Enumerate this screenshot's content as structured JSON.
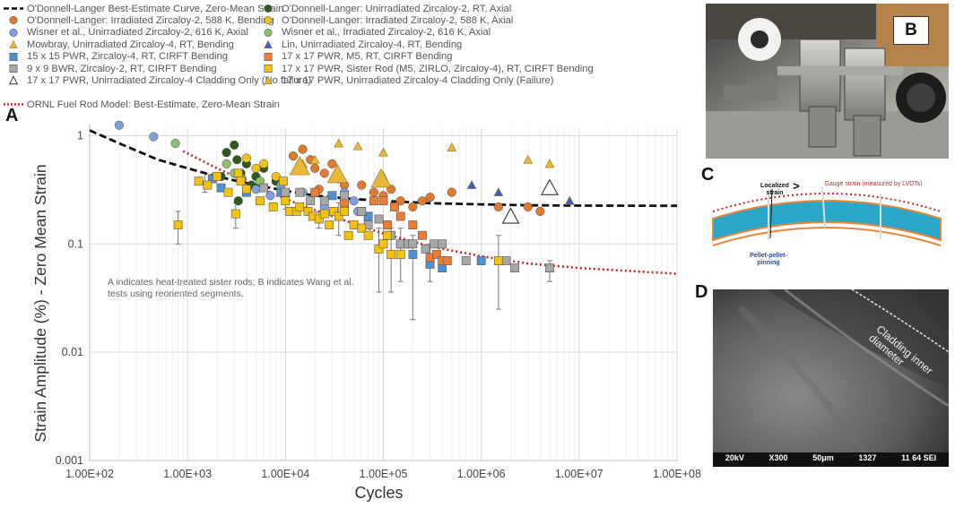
{
  "legend": [
    {
      "label": "O'Donnell-Langer Best-Estimate Curve, Zero-Mean Strain",
      "marker": "dash",
      "color": "#111111"
    },
    {
      "label": "O'Donnell-Langer: Unirradiated Zircaloy-2, RT, Axial",
      "marker": "circle",
      "color": "#2f5a1f"
    },
    {
      "label": "O'Donnell-Langer: Irradiated Zircaloy-2, 588 K, Bending",
      "marker": "circle",
      "color": "#e07a2e"
    },
    {
      "label": "O'Donnell-Langer: Irradiated Zircaloy-2, 588 K, Axial",
      "marker": "circle",
      "color": "#f2c21b"
    },
    {
      "label": "Wisner et al., Unirradiated Zircaloy-2, 616 K, Axial",
      "marker": "circle",
      "color": "#7fa0dc"
    },
    {
      "label": "Wisner et al., Irradiated Zircaloy-2, 616 K, Axial",
      "marker": "circle",
      "color": "#8fc06a"
    },
    {
      "label": "Mowbray, Unirradiated Zircaloy-4, RT, Bending",
      "marker": "triangle",
      "color": "#e8b83a"
    },
    {
      "label": "Lin, Unirradiated Zircaloy-4, RT, Bending",
      "marker": "triangle",
      "color": "#3c5ec6"
    },
    {
      "label": "15 x 15 PWR, Zircaloy-4, RT, CIRFT Bending",
      "marker": "square",
      "color": "#4f8fd6"
    },
    {
      "label": "17 x 17 PWR, M5, RT, CIRFT Bending",
      "marker": "square",
      "color": "#ee7c36"
    },
    {
      "label": "9 x 9 BWR, Zircaloy-2, RT, CIRFT Bending",
      "marker": "square",
      "color": "#a8a8a8"
    },
    {
      "label": "17 x 17 PWR, Sister Rod (M5, ZIRLO, Zircaloy-4), RT, CIRFT Bending",
      "marker": "square",
      "color": "#f4c20d"
    },
    {
      "label": "17 x 17 PWR, Unirradiated Zircaloy-4 Cladding Only (No failure)",
      "marker": "triangle-open",
      "color": "#333333"
    },
    {
      "label": "17 x 17 PWR, Unirradiated Zircaloy-4 Cladding Only (Failure)",
      "marker": "triangle",
      "color": "#e8b83a"
    },
    {
      "label": "ORNL Fuel Rod Model: Best-Estimate, Zero-Mean Strain",
      "marker": "dot",
      "color": "#c0282b"
    }
  ],
  "panel_labels": {
    "a": "A",
    "b": "B",
    "c": "C",
    "d": "D"
  },
  "chart_data": {
    "type": "scatter",
    "xscale": "log",
    "yscale": "log",
    "xlim": [
      100,
      100000000
    ],
    "ylim": [
      0.001,
      2
    ],
    "xlabel": "Cycles",
    "ylabel": "Strain Amplitude (%) - Zero Mean Strain",
    "xticks": [
      "1.00E+02",
      "1.00E+03",
      "1.00E+04",
      "1.00E+05",
      "1.00E+06",
      "1.00E+07",
      "1.00E+08"
    ],
    "xtick_values": [
      100,
      1000,
      10000,
      100000,
      1000000,
      10000000,
      100000000
    ],
    "yticks": [
      "1",
      "0.1",
      "0.01",
      "0.001"
    ],
    "ytick_values": [
      1,
      0.1,
      0.01,
      0.001
    ],
    "annotation": "A indicates heat-treated sister rods; B indicates Wang et al. tests using reoriented segments.",
    "curves": [
      {
        "name": "O'Donnell-Langer Best-Estimate Curve, Zero-Mean Strain",
        "style": "dash",
        "color": "#111111",
        "x": [
          100,
          200,
          500,
          1000,
          2000,
          5000,
          10000,
          20000,
          50000,
          100000,
          300000,
          1000000,
          3000000,
          10000000,
          100000000
        ],
        "y": [
          1.12,
          0.85,
          0.6,
          0.5,
          0.42,
          0.35,
          0.31,
          0.28,
          0.26,
          0.25,
          0.238,
          0.232,
          0.228,
          0.226,
          0.225
        ]
      },
      {
        "name": "ORNL Fuel Rod Model: Best-Estimate, Zero-Mean Strain",
        "style": "dot",
        "color": "#c0282b",
        "x": [
          900,
          2000,
          5000,
          10000,
          30000,
          100000,
          300000,
          1000000,
          3000000,
          10000000,
          100000000
        ],
        "y": [
          0.72,
          0.5,
          0.34,
          0.26,
          0.18,
          0.125,
          0.095,
          0.077,
          0.066,
          0.06,
          0.053
        ]
      }
    ],
    "series": [
      {
        "name": "O'Donnell-Langer: Unirradiated Zircaloy-2, RT, Axial",
        "marker": "circle",
        "color": "#2f5a1f",
        "points": [
          [
            2500,
            0.7
          ],
          [
            3000,
            0.82
          ],
          [
            3200,
            0.6
          ],
          [
            3500,
            0.45
          ],
          [
            4000,
            0.55
          ],
          [
            5000,
            0.42
          ],
          [
            6000,
            0.5
          ],
          [
            4500,
            0.35
          ],
          [
            3300,
            0.25
          ],
          [
            8000,
            0.38
          ],
          [
            2200,
            0.42
          ]
        ]
      },
      {
        "name": "O'Donnell-Langer: Irradiated Zircaloy-2, 588 K, Bending",
        "marker": "circle",
        "color": "#e07a2e",
        "points": [
          [
            15000,
            0.75
          ],
          [
            18000,
            0.6
          ],
          [
            20000,
            0.5
          ],
          [
            25000,
            0.45
          ],
          [
            30000,
            0.55
          ],
          [
            35000,
            0.4
          ],
          [
            40000,
            0.35
          ],
          [
            60000,
            0.35
          ],
          [
            80000,
            0.3
          ],
          [
            100000,
            0.28
          ],
          [
            120000,
            0.32
          ],
          [
            150000,
            0.25
          ],
          [
            200000,
            0.22
          ],
          [
            250000,
            0.25
          ],
          [
            300000,
            0.27
          ],
          [
            500000,
            0.3
          ],
          [
            1500000,
            0.22
          ],
          [
            3000000,
            0.22
          ],
          [
            4000000,
            0.2
          ],
          [
            12000,
            0.65
          ],
          [
            22000,
            0.32
          ]
        ]
      },
      {
        "name": "O'Donnell-Langer: Irradiated Zircaloy-2, 588 K, Axial",
        "marker": "circle",
        "color": "#f2c21b",
        "points": [
          [
            4000,
            0.62
          ],
          [
            5000,
            0.5
          ],
          [
            6000,
            0.55
          ],
          [
            8000,
            0.42
          ]
        ]
      },
      {
        "name": "Wisner et al., Unirradiated Zircaloy-2, 616 K, Axial",
        "marker": "circle",
        "color": "#7fa0dc",
        "points": [
          [
            200,
            1.25
          ],
          [
            450,
            0.98
          ],
          [
            5000,
            0.32
          ],
          [
            7000,
            0.28
          ],
          [
            9000,
            0.35
          ],
          [
            10000,
            0.28
          ],
          [
            15000,
            0.3
          ],
          [
            25000,
            0.22
          ],
          [
            40000,
            0.3
          ],
          [
            50000,
            0.25
          ],
          [
            55000,
            0.2
          ]
        ]
      },
      {
        "name": "Wisner et al., Irradiated Zircaloy-2, 616 K, Axial",
        "marker": "circle",
        "color": "#8fc06a",
        "points": [
          [
            750,
            0.85
          ],
          [
            2500,
            0.55
          ],
          [
            3000,
            0.45
          ],
          [
            3600,
            0.4
          ],
          [
            5500,
            0.38
          ]
        ]
      },
      {
        "name": "Mowbray, Unirradiated Zircaloy-4, RT, Bending",
        "marker": "triangle",
        "color": "#e8b83a",
        "points": [
          [
            15000,
            0.55
          ],
          [
            35000,
            0.45
          ],
          [
            100000,
            0.42
          ],
          [
            35000,
            0.85
          ],
          [
            100000,
            0.7
          ],
          [
            500000,
            0.78
          ],
          [
            3000000,
            0.6
          ],
          [
            5000000,
            0.55
          ],
          [
            20000,
            0.6
          ],
          [
            55000,
            0.8
          ]
        ]
      },
      {
        "name": "Lin, Unirradiated Zircaloy-4, RT, Bending",
        "marker": "triangle",
        "color": "#3c5ec6",
        "points": [
          [
            800000,
            0.35
          ],
          [
            1500000,
            0.3
          ],
          [
            8000000,
            0.25
          ]
        ]
      },
      {
        "name": "15 x 15 PWR, Zircaloy-4, RT, CIRFT Bending",
        "marker": "square",
        "color": "#4f8fd6",
        "points": [
          [
            1800,
            0.4
          ],
          [
            2200,
            0.33
          ],
          [
            4000,
            0.3
          ],
          [
            9000,
            0.3
          ],
          [
            30000,
            0.28
          ],
          [
            70000,
            0.18
          ],
          [
            150000,
            0.1
          ],
          [
            200000,
            0.08
          ],
          [
            300000,
            0.065
          ],
          [
            400000,
            0.06
          ],
          [
            1000000,
            0.07
          ]
        ]
      },
      {
        "name": "17 x 17 PWR, M5, RT, CIRFT Bending",
        "marker": "square",
        "color": "#ee7c36",
        "points": [
          [
            20000,
            0.3
          ],
          [
            40000,
            0.24
          ],
          [
            60000,
            0.2
          ],
          [
            80000,
            0.25
          ],
          [
            100000,
            0.25
          ],
          [
            110000,
            0.15
          ],
          [
            130000,
            0.22
          ],
          [
            150000,
            0.18
          ],
          [
            200000,
            0.15
          ],
          [
            250000,
            0.12
          ],
          [
            300000,
            0.075
          ],
          [
            350000,
            0.08
          ],
          [
            400000,
            0.07
          ],
          [
            450000,
            0.07
          ]
        ]
      },
      {
        "name": "9 x 9 BWR, Zircaloy-2, RT, CIRFT Bending",
        "marker": "square",
        "color": "#a8a8a8",
        "points": [
          [
            6000,
            0.33
          ],
          [
            10000,
            0.3
          ],
          [
            14000,
            0.3
          ],
          [
            18000,
            0.25
          ],
          [
            25000,
            0.25
          ],
          [
            40000,
            0.28
          ],
          [
            60000,
            0.2
          ],
          [
            70000,
            0.15
          ],
          [
            120000,
            0.12
          ],
          [
            150000,
            0.1
          ],
          [
            180000,
            0.1
          ],
          [
            200000,
            0.1
          ],
          [
            330000,
            0.1
          ],
          [
            400000,
            0.1
          ],
          [
            700000,
            0.07
          ],
          [
            1800000,
            0.07
          ],
          [
            2200000,
            0.06
          ],
          [
            5000000,
            0.06
          ],
          [
            90000,
            0.17
          ],
          [
            270000,
            0.09
          ]
        ]
      },
      {
        "name": "17 x 17 PWR, Sister Rod (M5, ZIRLO, Zircaloy-4), RT, CIRFT Bending",
        "marker": "square",
        "color": "#f4c20d",
        "points": [
          [
            800,
            0.15
          ],
          [
            1300,
            0.38
          ],
          [
            1600,
            0.35
          ],
          [
            2000,
            0.42
          ],
          [
            2600,
            0.3
          ],
          [
            3100,
            0.19
          ],
          [
            3300,
            0.45
          ],
          [
            3500,
            0.38
          ],
          [
            4000,
            0.32
          ],
          [
            5500,
            0.25
          ],
          [
            7500,
            0.22
          ],
          [
            9500,
            0.38
          ],
          [
            10000,
            0.25
          ],
          [
            11000,
            0.2
          ],
          [
            13000,
            0.2
          ],
          [
            14000,
            0.22
          ],
          [
            17000,
            0.2
          ],
          [
            19000,
            0.18
          ],
          [
            22000,
            0.17
          ],
          [
            25000,
            0.19
          ],
          [
            28000,
            0.15
          ],
          [
            31000,
            0.2
          ],
          [
            35000,
            0.18
          ],
          [
            40000,
            0.2
          ],
          [
            44000,
            0.12
          ],
          [
            50000,
            0.15
          ],
          [
            60000,
            0.14
          ],
          [
            70000,
            0.12
          ],
          [
            90000,
            0.09
          ],
          [
            100000,
            0.1
          ],
          [
            120000,
            0.08
          ],
          [
            150000,
            0.08
          ],
          [
            1500000,
            0.07
          ],
          [
            110000,
            0.12
          ]
        ]
      },
      {
        "name": "17 x 17 PWR, Unirradiated Zircaloy-4 Cladding Only (No failure)",
        "marker": "triangle-open",
        "color": "#333333",
        "points": [
          [
            2000000,
            0.18
          ],
          [
            5000000,
            0.33
          ]
        ]
      },
      {
        "name": "17 x 17 PWR, Unirradiated Zircaloy-4 Cladding Only (Failure)",
        "marker": "triangle",
        "color": "#e8b83a",
        "points": [
          [
            14000,
            0.52
          ],
          [
            34000,
            0.44
          ],
          [
            95000,
            0.4
          ]
        ]
      }
    ],
    "error_bars": [
      {
        "x": 800,
        "y": 0.15,
        "lo": 0.1,
        "hi": 0.2
      },
      {
        "x": 1500,
        "y": 0.38,
        "lo": 0.3,
        "hi": 0.45
      },
      {
        "x": 3100,
        "y": 0.19,
        "lo": 0.14,
        "hi": 0.24
      },
      {
        "x": 10000,
        "y": 0.25,
        "lo": 0.21,
        "hi": 0.3
      },
      {
        "x": 22000,
        "y": 0.17,
        "lo": 0.14,
        "hi": 0.2
      },
      {
        "x": 35000,
        "y": 0.18,
        "lo": 0.12,
        "hi": 0.24
      },
      {
        "x": 90000,
        "y": 0.09,
        "lo": 0.036,
        "hi": 0.14
      },
      {
        "x": 120000,
        "y": 0.09,
        "lo": 0.036,
        "hi": 0.14
      },
      {
        "x": 150000,
        "y": 0.1,
        "lo": 0.045,
        "hi": 0.14
      },
      {
        "x": 200000,
        "y": 0.07,
        "lo": 0.02,
        "hi": 0.12
      },
      {
        "x": 300000,
        "y": 0.08,
        "lo": 0.045,
        "hi": 0.1
      },
      {
        "x": 1500000,
        "y": 0.07,
        "lo": 0.025,
        "hi": 0.12
      },
      {
        "x": 5000000,
        "y": 0.06,
        "lo": 0.045,
        "hi": 0.07
      }
    ]
  },
  "panel_c": {
    "localized_strain": "Localized strain",
    "gauge_strain": "Gauge strain (measured by LVDTs)",
    "symbol": ">",
    "pellet_pinning": "Pellet-pellet-pinning"
  },
  "panel_d": {
    "label": "Cladding inner diameter",
    "scale_items": [
      "20kV",
      "X300",
      "50μm",
      "1327",
      "11 64 SEI"
    ]
  }
}
